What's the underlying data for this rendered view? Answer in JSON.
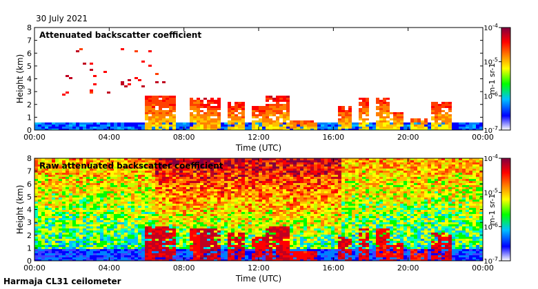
{
  "header": {
    "date": "30 July 2021"
  },
  "footer": {
    "source": "Harmaja CL31 ceilometer"
  },
  "chart_data": [
    {
      "type": "heatmap",
      "title": "Attenuated backscatter coefficient",
      "xlabel": "Time (UTC)",
      "ylabel": "Height (km)",
      "x_ticks": [
        "00:00",
        "04:00",
        "08:00",
        "12:00",
        "16:00",
        "20:00",
        "00:00"
      ],
      "xlim_hours": [
        0,
        24
      ],
      "y_ticks": [
        0,
        1,
        2,
        3,
        4,
        5,
        6,
        7,
        8
      ],
      "ylim": [
        0,
        8
      ],
      "colorbar": {
        "label": "m-1 sr-1",
        "scale": "log",
        "range": [
          1e-07,
          0.0001
        ],
        "tick_labels": [
          "10-4",
          "10-5",
          "10-6",
          "10-7"
        ],
        "colors": [
          "#ffffff",
          "#0000ff",
          "#00c0ff",
          "#00ff00",
          "#ffff00",
          "#ff8000",
          "#ff0000",
          "#800040"
        ]
      }
    },
    {
      "type": "heatmap",
      "title": "Raw attenuated backscatter coefficient",
      "xlabel": "Time (UTC)",
      "ylabel": "Height (km)",
      "x_ticks": [
        "00:00",
        "04:00",
        "08:00",
        "12:00",
        "16:00",
        "20:00",
        "00:00"
      ],
      "xlim_hours": [
        0,
        24
      ],
      "y_ticks": [
        0,
        1,
        2,
        3,
        4,
        5,
        6,
        7,
        8
      ],
      "ylim": [
        0,
        8
      ],
      "colorbar": {
        "label": "m-1 sr-1",
        "scale": "log",
        "range": [
          1e-07,
          0.0001
        ],
        "tick_labels": [
          "10-4",
          "10-5",
          "10-6",
          "10-7"
        ],
        "colors": [
          "#ffffff",
          "#0000ff",
          "#00c0ff",
          "#00ff00",
          "#ffff00",
          "#ff8000",
          "#ff0000",
          "#800040"
        ]
      }
    }
  ]
}
